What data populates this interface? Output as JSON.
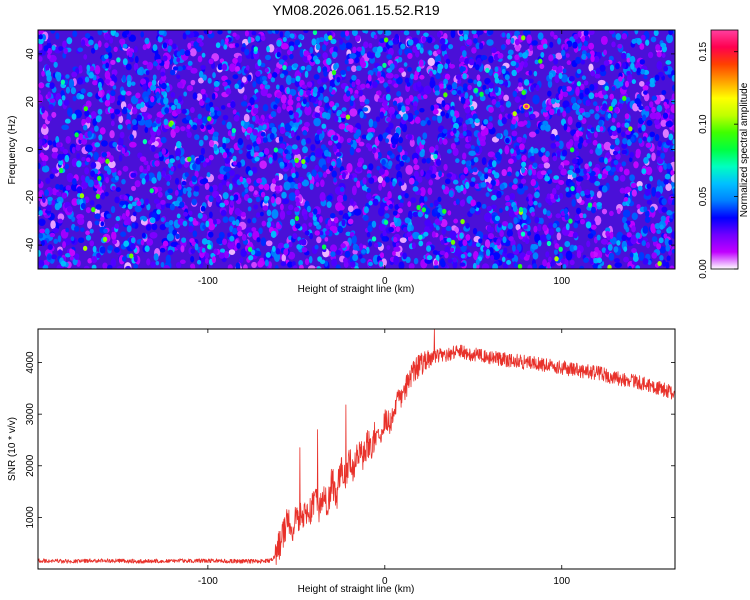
{
  "title": "YM08.2026.061.15.52.R19",
  "chart_data": [
    {
      "type": "heatmap",
      "name": "spectrogram",
      "xlabel": "Height of straight line (km)",
      "ylabel": "Frequency (Hz)",
      "xlim": [
        -196,
        164
      ],
      "ylim": [
        -50,
        50
      ],
      "xticks": [
        -100,
        0,
        100
      ],
      "yticks": [
        -40,
        -20,
        0,
        20,
        40
      ],
      "xtick_labels": [
        "-100",
        "0",
        "100"
      ],
      "ytick_labels": [
        "-40",
        "-20",
        "0",
        "20",
        "40"
      ],
      "colorbar": {
        "label": "Normalized spectral amplitude",
        "range": [
          0,
          0.165
        ],
        "ticks": [
          0,
          0.05,
          0.1,
          0.15
        ],
        "tick_labels": [
          "0.00",
          "0.05",
          "0.10",
          "0.15"
        ],
        "colors": [
          "#ffffff",
          "#c000ff",
          "#7000ff",
          "#0000ff",
          "#0080ff",
          "#00c0ff",
          "#00ffc0",
          "#00ff40",
          "#40ff00",
          "#c0ff00",
          "#ffff00",
          "#ffa000",
          "#ff4000",
          "#ff0050",
          "#ff40a0"
        ]
      },
      "background_color": "#4a10d8",
      "typical_amplitude": [
        0.01,
        0.05
      ],
      "peak": {
        "x": 80,
        "y": 18,
        "value": 0.16
      }
    },
    {
      "type": "line",
      "name": "snr",
      "xlabel": "Height of straight line (km)",
      "ylabel": "SNR (10 * v/v)",
      "xlim": [
        -196,
        164
      ],
      "ylim": [
        0,
        4650
      ],
      "xticks": [
        -100,
        0,
        100
      ],
      "yticks": [
        1000,
        2000,
        3000,
        4000
      ],
      "xtick_labels": [
        "-100",
        "0",
        "100"
      ],
      "ytick_labels": [
        "1000",
        "2000",
        "3000",
        "4000"
      ],
      "color": "#e8312a",
      "series": [
        {
          "name": "SNR",
          "x": [
            -196,
            -180,
            -160,
            -140,
            -120,
            -100,
            -80,
            -70,
            -65,
            -62,
            -58,
            -55,
            -52,
            -50,
            -47,
            -45,
            -43,
            -40,
            -37,
            -35,
            -32,
            -30,
            -27,
            -25,
            -22,
            -20,
            -18,
            -15,
            -12,
            -10,
            -8,
            -5,
            -2,
            0,
            3,
            6,
            10,
            13,
            16,
            20,
            24,
            28,
            32,
            36,
            40,
            45,
            50,
            55,
            60,
            70,
            80,
            90,
            100,
            110,
            120,
            130,
            140,
            150,
            160,
            164
          ],
          "y": [
            160,
            150,
            160,
            150,
            160,
            160,
            150,
            150,
            160,
            250,
            600,
            900,
            800,
            1100,
            950,
            1200,
            1100,
            1300,
            1200,
            1400,
            1250,
            1700,
            1450,
            1950,
            1700,
            2100,
            1900,
            2300,
            2100,
            2500,
            2300,
            2700,
            2600,
            2950,
            2800,
            3150,
            3400,
            3600,
            3800,
            3950,
            4050,
            4100,
            4150,
            4150,
            4200,
            4200,
            4150,
            4150,
            4100,
            4050,
            4000,
            3950,
            3900,
            3850,
            3800,
            3700,
            3650,
            3550,
            3450,
            3400
          ]
        }
      ],
      "noise": [
        {
          "from": -196,
          "to": -62,
          "amp": 40
        },
        {
          "from": -62,
          "to": -5,
          "amp": 300
        },
        {
          "from": -5,
          "to": 25,
          "amp": 230
        },
        {
          "from": 25,
          "to": 164,
          "amp": 140
        }
      ],
      "spikes": [
        {
          "x": -48,
          "y": 2350
        },
        {
          "x": -38,
          "y": 2700
        },
        {
          "x": -22,
          "y": 3180
        },
        {
          "x": 15,
          "y": 3950
        },
        {
          "x": 28,
          "y": 4650
        }
      ]
    }
  ]
}
